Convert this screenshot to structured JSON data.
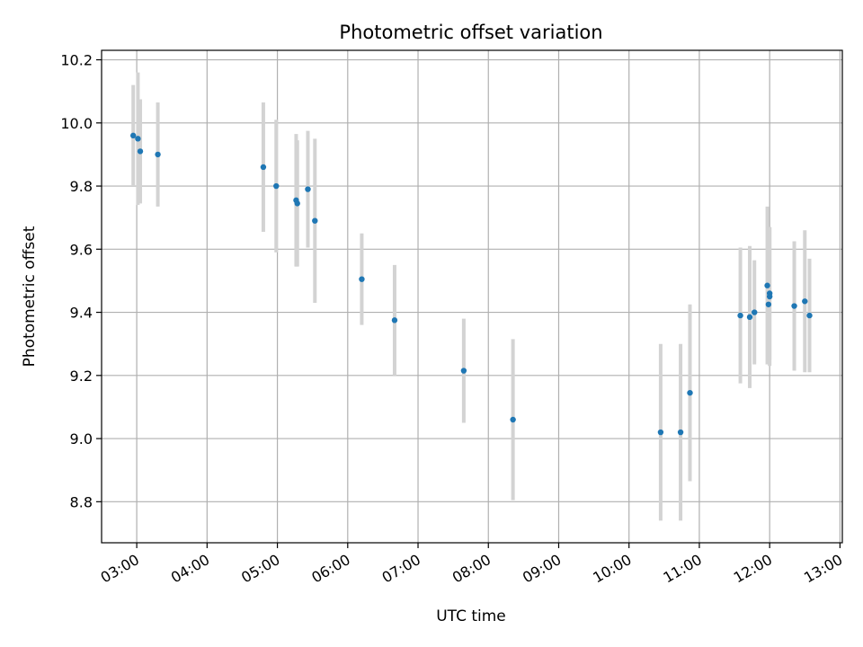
{
  "chart_data": {
    "type": "scatter",
    "title": "Photometric offset variation",
    "xlabel": "UTC time",
    "ylabel": "Photometric offset",
    "ylim": [
      8.67,
      10.23
    ],
    "xlim": [
      "02:30",
      "13:02"
    ],
    "grid": true,
    "yticks": [
      "8.8",
      "9.0",
      "9.2",
      "9.4",
      "9.6",
      "9.8",
      "10.0",
      "10.2"
    ],
    "xticks": [
      "03:00",
      "04:00",
      "05:00",
      "06:00",
      "07:00",
      "08:00",
      "09:00",
      "10:00",
      "11:00",
      "12:00",
      "13:00"
    ],
    "series": [
      {
        "marker_color": "#1f77b4",
        "errorbar_color": "#d3d3d3",
        "points": [
          {
            "x": "02:57",
            "y": 9.96,
            "yerr": 0.16
          },
          {
            "x": "03:01",
            "y": 9.95,
            "yerr": 0.21
          },
          {
            "x": "03:03",
            "y": 9.91,
            "yerr": 0.165
          },
          {
            "x": "03:18",
            "y": 9.9,
            "yerr": 0.165
          },
          {
            "x": "04:48",
            "y": 9.86,
            "yerr": 0.205
          },
          {
            "x": "04:59",
            "y": 9.8,
            "yerr": 0.21
          },
          {
            "x": "05:16",
            "y": 9.755,
            "yerr": 0.21
          },
          {
            "x": "05:17",
            "y": 9.745,
            "yerr": 0.2
          },
          {
            "x": "05:26",
            "y": 9.79,
            "yerr": 0.185
          },
          {
            "x": "05:32",
            "y": 9.69,
            "yerr": 0.26
          },
          {
            "x": "06:12",
            "y": 9.505,
            "yerr": 0.145
          },
          {
            "x": "06:40",
            "y": 9.375,
            "yerr": 0.175
          },
          {
            "x": "07:39",
            "y": 9.215,
            "yerr": 0.165
          },
          {
            "x": "08:21",
            "y": 9.06,
            "yerr": 0.255
          },
          {
            "x": "10:27",
            "y": 9.02,
            "yerr": 0.28
          },
          {
            "x": "10:44",
            "y": 9.02,
            "yerr": 0.28
          },
          {
            "x": "10:52",
            "y": 9.145,
            "yerr": 0.28
          },
          {
            "x": "11:35",
            "y": 9.39,
            "yerr": 0.215
          },
          {
            "x": "11:43",
            "y": 9.385,
            "yerr": 0.225
          },
          {
            "x": "11:47",
            "y": 9.4,
            "yerr": 0.165
          },
          {
            "x": "11:58",
            "y": 9.485,
            "yerr": 0.25
          },
          {
            "x": "11:59",
            "y": 9.425,
            "yerr": 0.19
          },
          {
            "x": "12:00",
            "y": 9.46,
            "yerr": 0.21
          },
          {
            "x": "12:00",
            "y": 9.45,
            "yerr": 0.22
          },
          {
            "x": "12:21",
            "y": 9.42,
            "yerr": 0.205
          },
          {
            "x": "12:30",
            "y": 9.435,
            "yerr": 0.225
          },
          {
            "x": "12:34",
            "y": 9.39,
            "yerr": 0.18
          }
        ]
      }
    ]
  }
}
